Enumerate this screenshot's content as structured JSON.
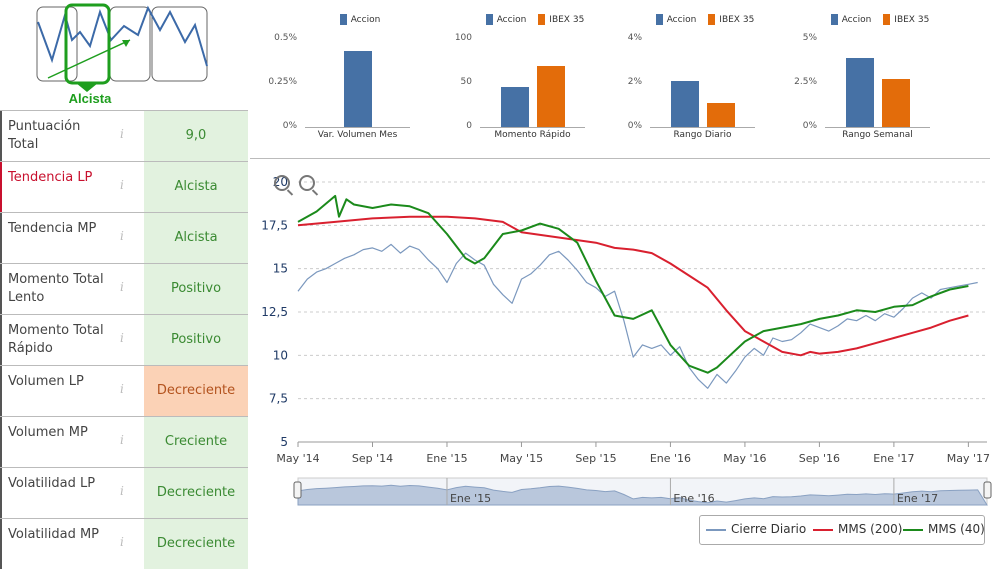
{
  "trend_card": {
    "label": "Alcista",
    "colors": {
      "accent": "#1e9e1e",
      "line": "#3c6aa8"
    }
  },
  "metrics": [
    {
      "label": "Puntuación Total",
      "value": "9,0",
      "tone": "green",
      "active": false
    },
    {
      "label": "Tendencia LP",
      "value": "Alcista",
      "tone": "green",
      "active": true
    },
    {
      "label": "Tendencia MP",
      "value": "Alcista",
      "tone": "green",
      "active": false
    },
    {
      "label": "Momento Total Lento",
      "value": "Positivo",
      "tone": "green",
      "active": false
    },
    {
      "label": "Momento Total Rápido",
      "value": "Positivo",
      "tone": "green",
      "active": false
    },
    {
      "label": "Volumen LP",
      "value": "Decreciente",
      "tone": "orange",
      "active": false
    },
    {
      "label": "Volumen MP",
      "value": "Creciente",
      "tone": "green",
      "active": false
    },
    {
      "label": "Volatilidad LP",
      "value": "Decreciente",
      "tone": "green",
      "active": false
    },
    {
      "label": "Volatilidad MP",
      "value": "Decreciente",
      "tone": "green",
      "active": false
    }
  ],
  "info_glyph": "i",
  "colors": {
    "accion": "#4671a5",
    "ibex": "#e36c0a",
    "cierre": "#7b98be",
    "mms200": "#d9202f",
    "mms40": "#1b8a1b"
  },
  "chart_data": [
    {
      "type": "bar",
      "title": "Var. Volumen Mes",
      "series": [
        {
          "name": "Accion",
          "values": [
            0.43
          ]
        }
      ],
      "ylim": [
        0,
        0.5
      ],
      "ytick_labels": [
        "0.5%",
        "0.25%",
        "0%"
      ]
    },
    {
      "type": "bar",
      "title": "Momento Rápido",
      "series": [
        {
          "name": "Accion",
          "values": [
            45
          ]
        },
        {
          "name": "IBEX 35",
          "values": [
            69
          ]
        }
      ],
      "ylim": [
        0,
        100
      ],
      "ytick_labels": [
        "100",
        "50",
        "0"
      ]
    },
    {
      "type": "bar",
      "title": "Rango Diario",
      "series": [
        {
          "name": "Accion",
          "values": [
            2.1
          ]
        },
        {
          "name": "IBEX 35",
          "values": [
            1.1
          ]
        }
      ],
      "ylim": [
        0,
        4
      ],
      "ytick_labels": [
        "4%",
        "2%",
        "0%"
      ]
    },
    {
      "type": "bar",
      "title": "Rango Semanal",
      "series": [
        {
          "name": "Accion",
          "values": [
            3.9
          ]
        },
        {
          "name": "IBEX 35",
          "values": [
            2.7
          ]
        }
      ],
      "ylim": [
        0,
        5
      ],
      "ytick_labels": [
        "5%",
        "2.5%",
        "0%"
      ]
    },
    {
      "type": "line",
      "title": "",
      "ylim": [
        5,
        20
      ],
      "ytick_labels": [
        "5",
        "7,5",
        "10",
        "12,5",
        "15",
        "17,5",
        "20"
      ],
      "x_range": [
        0,
        37
      ],
      "xtick_labels": [
        "May '14",
        "Sep '14",
        "Ene '15",
        "May '15",
        "Sep '15",
        "Ene '16",
        "May '16",
        "Sep '16",
        "Ene '17",
        "May '17"
      ],
      "navigator_labels": [
        "Ene '15",
        "Ene '16",
        "Ene '17"
      ],
      "series": [
        {
          "name": "Cierre Diario",
          "x": [
            0,
            0.5,
            1,
            1.5,
            2,
            2.5,
            3,
            3.5,
            4,
            4.5,
            5,
            5.5,
            6,
            6.5,
            7,
            7.5,
            8,
            8.5,
            9,
            9.5,
            10,
            10.5,
            11,
            11.5,
            12,
            12.5,
            13,
            13.5,
            14,
            14.5,
            15,
            15.5,
            16,
            16.5,
            17,
            17.5,
            18,
            18.5,
            19,
            19.5,
            20,
            20.5,
            21,
            21.5,
            22,
            22.5,
            23,
            23.5,
            24,
            24.5,
            25,
            25.5,
            26,
            26.5,
            27,
            27.5,
            28,
            28.5,
            29,
            29.5,
            30,
            30.5,
            31,
            31.5,
            32,
            32.5,
            33,
            33.5,
            34,
            34.5,
            35,
            35.5,
            36,
            36.5
          ],
          "y": [
            13.7,
            14.4,
            14.8,
            15.0,
            15.3,
            15.6,
            15.8,
            16.1,
            16.2,
            16.0,
            16.4,
            15.9,
            16.3,
            16.1,
            15.5,
            15.0,
            14.2,
            15.3,
            15.9,
            15.5,
            15.2,
            14.1,
            13.5,
            13.0,
            14.4,
            14.7,
            15.2,
            15.8,
            16.0,
            15.5,
            14.9,
            14.2,
            13.9,
            13.4,
            13.7,
            12.0,
            9.9,
            10.6,
            10.4,
            10.6,
            10.0,
            10.5,
            9.3,
            8.6,
            8.1,
            8.9,
            8.4,
            9.1,
            9.9,
            10.4,
            10.0,
            11.0,
            10.8,
            10.9,
            11.3,
            11.8,
            11.6,
            11.4,
            11.7,
            12.1,
            12.0,
            12.3,
            12.0,
            12.4,
            12.2,
            12.7,
            13.3,
            13.6,
            13.3,
            13.8,
            13.9,
            14.0,
            14.1,
            14.2
          ]
        },
        {
          "name": "MMS (200)",
          "x": [
            0,
            2,
            4,
            6,
            8,
            9.5,
            11,
            12,
            14,
            16,
            17,
            18,
            19,
            20,
            21,
            22,
            23,
            24,
            24.5,
            25,
            26,
            27,
            27.5,
            28,
            29,
            30,
            31,
            32,
            33,
            34,
            35,
            36
          ],
          "y": [
            17.5,
            17.7,
            17.9,
            18.0,
            18.0,
            17.9,
            17.7,
            17.1,
            16.8,
            16.5,
            16.2,
            16.1,
            15.9,
            15.3,
            14.6,
            13.9,
            12.6,
            11.4,
            11.1,
            10.8,
            10.2,
            10.0,
            10.2,
            10.1,
            10.2,
            10.4,
            10.7,
            11.0,
            11.3,
            11.6,
            12.0,
            12.3
          ]
        },
        {
          "name": "MMS (40)",
          "x": [
            0,
            1,
            2,
            2.2,
            2.6,
            3,
            4,
            5,
            6,
            7,
            8,
            9,
            9.5,
            10,
            11,
            12,
            13,
            14,
            15,
            16,
            17,
            18,
            19,
            20,
            21,
            22,
            22.5,
            23,
            24,
            25,
            26,
            27,
            28,
            29,
            30,
            31,
            32,
            33,
            34,
            35,
            36
          ],
          "y": [
            17.7,
            18.3,
            19.2,
            18.0,
            19.0,
            18.7,
            18.5,
            18.7,
            18.6,
            18.2,
            17.0,
            15.6,
            15.3,
            15.6,
            17.0,
            17.2,
            17.6,
            17.3,
            16.5,
            14.3,
            12.3,
            12.1,
            12.6,
            10.6,
            9.4,
            9.0,
            9.3,
            9.8,
            10.8,
            11.4,
            11.6,
            11.8,
            12.1,
            12.3,
            12.6,
            12.5,
            12.8,
            12.9,
            13.4,
            13.8,
            14.0
          ]
        }
      ],
      "legend_entries": [
        "Cierre Diario",
        "MMS (200)",
        "MMS (40)"
      ]
    }
  ]
}
